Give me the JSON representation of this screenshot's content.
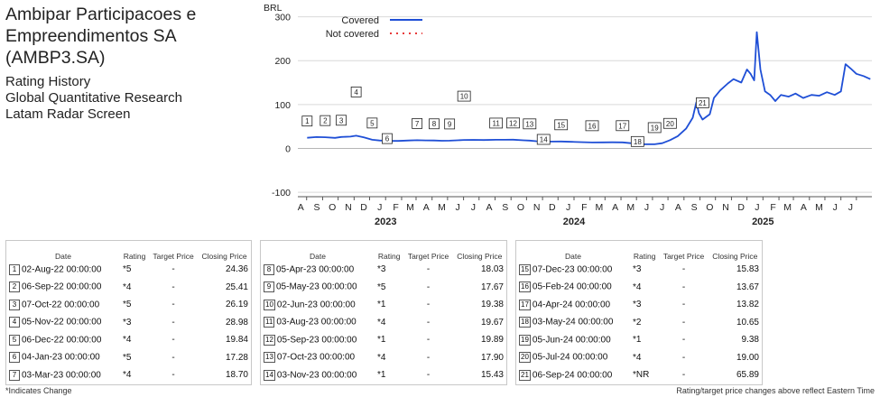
{
  "header": {
    "company_line1": "Ambipar Participacoes e",
    "company_line2": "Empreendimentos SA (AMBP3.SA)",
    "line3": "Rating History",
    "line4": "Global Quantitative Research",
    "line5": "Latam Radar Screen"
  },
  "chart_data": {
    "type": "line",
    "currency_label": "BRL",
    "y_ticks": [
      300,
      200,
      100,
      0,
      -100
    ],
    "ylim": [
      -110,
      330
    ],
    "x_start": "2022-07-15",
    "x_end": "2025-07-31",
    "month_labels": [
      "A",
      "S",
      "O",
      "N",
      "D",
      "J",
      "F",
      "M",
      "A",
      "M",
      "J",
      "J",
      "A",
      "S",
      "O",
      "N",
      "D",
      "J",
      "F",
      "M",
      "A",
      "M",
      "J",
      "J",
      "A",
      "S",
      "O",
      "N",
      "D",
      "J",
      "F",
      "M",
      "A",
      "M",
      "J",
      "J"
    ],
    "year_labels": [
      {
        "label": "2023",
        "date": "2023-01-01"
      },
      {
        "label": "2024",
        "date": "2024-01-01"
      },
      {
        "label": "2025",
        "date": "2025-01-01"
      }
    ],
    "grid": true,
    "legend": {
      "position": "top-left",
      "covered": "Covered",
      "not_covered": "Not covered"
    },
    "colors": {
      "covered": "#1f4fd6",
      "not_covered": "#e83a3a"
    },
    "series": [
      {
        "name": "Covered",
        "points": [
          [
            "2022-08-02",
            24.36
          ],
          [
            "2022-08-20",
            26
          ],
          [
            "2022-09-06",
            25.41
          ],
          [
            "2022-09-25",
            24
          ],
          [
            "2022-10-07",
            26.19
          ],
          [
            "2022-10-25",
            27
          ],
          [
            "2022-11-05",
            28.98
          ],
          [
            "2022-11-20",
            25
          ],
          [
            "2022-12-06",
            19.84
          ],
          [
            "2022-12-20",
            18
          ],
          [
            "2023-01-04",
            17.28
          ],
          [
            "2023-01-25",
            17
          ],
          [
            "2023-02-15",
            18
          ],
          [
            "2023-03-03",
            18.7
          ],
          [
            "2023-03-20",
            18.2
          ],
          [
            "2023-04-05",
            18.03
          ],
          [
            "2023-04-20",
            17.5
          ],
          [
            "2023-05-05",
            17.67
          ],
          [
            "2023-05-20",
            18.5
          ],
          [
            "2023-06-02",
            19.38
          ],
          [
            "2023-06-20",
            19.5
          ],
          [
            "2023-07-10",
            19.2
          ],
          [
            "2023-08-03",
            19.67
          ],
          [
            "2023-08-20",
            19.8
          ],
          [
            "2023-09-05",
            19.89
          ],
          [
            "2023-09-25",
            18.5
          ],
          [
            "2023-10-07",
            17.9
          ],
          [
            "2023-10-20",
            16.5
          ],
          [
            "2023-11-03",
            15.43
          ],
          [
            "2023-11-20",
            15.6
          ],
          [
            "2023-12-07",
            15.83
          ],
          [
            "2023-12-28",
            15
          ],
          [
            "2024-01-20",
            14.2
          ],
          [
            "2024-02-05",
            13.67
          ],
          [
            "2024-02-25",
            13.8
          ],
          [
            "2024-03-15",
            13.9
          ],
          [
            "2024-04-04",
            13.82
          ],
          [
            "2024-04-20",
            12
          ],
          [
            "2024-05-03",
            10.65
          ],
          [
            "2024-05-15",
            9.5
          ],
          [
            "2024-06-05",
            9.38
          ],
          [
            "2024-06-20",
            12
          ],
          [
            "2024-07-05",
            19.0
          ],
          [
            "2024-07-20",
            28
          ],
          [
            "2024-08-05",
            45
          ],
          [
            "2024-08-18",
            70
          ],
          [
            "2024-08-25",
            105
          ],
          [
            "2024-08-30",
            80
          ],
          [
            "2024-09-06",
            65.89
          ],
          [
            "2024-09-20",
            78
          ],
          [
            "2024-09-28",
            115
          ],
          [
            "2024-10-10",
            132
          ],
          [
            "2024-10-25",
            148
          ],
          [
            "2024-11-05",
            158
          ],
          [
            "2024-11-20",
            150
          ],
          [
            "2024-12-01",
            180
          ],
          [
            "2024-12-08",
            170
          ],
          [
            "2024-12-15",
            155
          ],
          [
            "2024-12-20",
            265
          ],
          [
            "2024-12-27",
            180
          ],
          [
            "2025-01-05",
            130
          ],
          [
            "2025-01-15",
            122
          ],
          [
            "2025-01-25",
            108
          ],
          [
            "2025-02-05",
            122
          ],
          [
            "2025-02-20",
            118
          ],
          [
            "2025-03-05",
            125
          ],
          [
            "2025-03-20",
            115
          ],
          [
            "2025-04-05",
            122
          ],
          [
            "2025-04-20",
            120
          ],
          [
            "2025-05-05",
            128
          ],
          [
            "2025-05-20",
            122
          ],
          [
            "2025-06-01",
            130
          ],
          [
            "2025-06-10",
            192
          ],
          [
            "2025-06-20",
            182
          ],
          [
            "2025-07-01",
            170
          ],
          [
            "2025-07-15",
            165
          ],
          [
            "2025-07-28",
            158
          ]
        ]
      }
    ],
    "markers": [
      {
        "n": "1",
        "date": "2022-08-02",
        "offset": 18
      },
      {
        "n": "2",
        "date": "2022-09-06",
        "offset": 18
      },
      {
        "n": "3",
        "date": "2022-10-07",
        "offset": 18
      },
      {
        "n": "4",
        "date": "2022-11-05",
        "offset": 48
      },
      {
        "n": "5",
        "date": "2022-12-06",
        "offset": 18
      },
      {
        "n": "6",
        "date": "2023-01-04",
        "offset": 2
      },
      {
        "n": "7",
        "date": "2023-03-03",
        "offset": 18
      },
      {
        "n": "8",
        "date": "2023-04-05",
        "offset": 18
      },
      {
        "n": "9",
        "date": "2023-05-05",
        "offset": 18
      },
      {
        "n": "10",
        "date": "2023-06-02",
        "offset": 48
      },
      {
        "n": "11",
        "date": "2023-08-03",
        "offset": 18
      },
      {
        "n": "12",
        "date": "2023-09-05",
        "offset": 18
      },
      {
        "n": "13",
        "date": "2023-10-07",
        "offset": 18
      },
      {
        "n": "14",
        "date": "2023-11-03",
        "offset": 2
      },
      {
        "n": "15",
        "date": "2023-12-07",
        "offset": 18
      },
      {
        "n": "16",
        "date": "2024-02-05",
        "offset": 18
      },
      {
        "n": "17",
        "date": "2024-04-04",
        "offset": 18
      },
      {
        "n": "18",
        "date": "2024-05-03",
        "offset": 2
      },
      {
        "n": "19",
        "date": "2024-06-05",
        "offset": 18
      },
      {
        "n": "20",
        "date": "2024-07-05",
        "offset": 18
      },
      {
        "n": "21",
        "date": "2024-09-06",
        "offset": 18
      }
    ]
  },
  "table_headers": {
    "date": "Date",
    "rating": "Rating",
    "target_price": "Target Price",
    "closing_price": "Closing Price"
  },
  "tables": [
    [
      {
        "n": "1",
        "date": "02-Aug-22 00:00:00",
        "rating": "*5",
        "target": "-",
        "close": "24.36"
      },
      {
        "n": "2",
        "date": "06-Sep-22 00:00:00",
        "rating": "*4",
        "target": "-",
        "close": "25.41"
      },
      {
        "n": "3",
        "date": "07-Oct-22 00:00:00",
        "rating": "*5",
        "target": "-",
        "close": "26.19"
      },
      {
        "n": "4",
        "date": "05-Nov-22 00:00:00",
        "rating": "*3",
        "target": "-",
        "close": "28.98"
      },
      {
        "n": "5",
        "date": "06-Dec-22 00:00:00",
        "rating": "*4",
        "target": "-",
        "close": "19.84"
      },
      {
        "n": "6",
        "date": "04-Jan-23 00:00:00",
        "rating": "*5",
        "target": "-",
        "close": "17.28"
      },
      {
        "n": "7",
        "date": "03-Mar-23 00:00:00",
        "rating": "*4",
        "target": "-",
        "close": "18.70"
      }
    ],
    [
      {
        "n": "8",
        "date": "05-Apr-23 00:00:00",
        "rating": "*3",
        "target": "-",
        "close": "18.03"
      },
      {
        "n": "9",
        "date": "05-May-23 00:00:00",
        "rating": "*5",
        "target": "-",
        "close": "17.67"
      },
      {
        "n": "10",
        "date": "02-Jun-23 00:00:00",
        "rating": "*1",
        "target": "-",
        "close": "19.38"
      },
      {
        "n": "11",
        "date": "03-Aug-23 00:00:00",
        "rating": "*4",
        "target": "-",
        "close": "19.67"
      },
      {
        "n": "12",
        "date": "05-Sep-23 00:00:00",
        "rating": "*1",
        "target": "-",
        "close": "19.89"
      },
      {
        "n": "13",
        "date": "07-Oct-23 00:00:00",
        "rating": "*4",
        "target": "-",
        "close": "17.90"
      },
      {
        "n": "14",
        "date": "03-Nov-23 00:00:00",
        "rating": "*1",
        "target": "-",
        "close": "15.43"
      }
    ],
    [
      {
        "n": "15",
        "date": "07-Dec-23 00:00:00",
        "rating": "*3",
        "target": "-",
        "close": "15.83"
      },
      {
        "n": "16",
        "date": "05-Feb-24 00:00:00",
        "rating": "*4",
        "target": "-",
        "close": "13.67"
      },
      {
        "n": "17",
        "date": "04-Apr-24 00:00:00",
        "rating": "*3",
        "target": "-",
        "close": "13.82"
      },
      {
        "n": "18",
        "date": "03-May-24 00:00:00",
        "rating": "*2",
        "target": "-",
        "close": "10.65"
      },
      {
        "n": "19",
        "date": "05-Jun-24 00:00:00",
        "rating": "*1",
        "target": "-",
        "close": "9.38"
      },
      {
        "n": "20",
        "date": "05-Jul-24 00:00:00",
        "rating": "*4",
        "target": "-",
        "close": "19.00"
      },
      {
        "n": "21",
        "date": "06-Sep-24 00:00:00",
        "rating": "*NR",
        "target": "-",
        "close": "65.89"
      }
    ]
  ],
  "footer": {
    "left": "*Indicates Change",
    "right": "Rating/target price changes above reflect Eastern Time"
  }
}
